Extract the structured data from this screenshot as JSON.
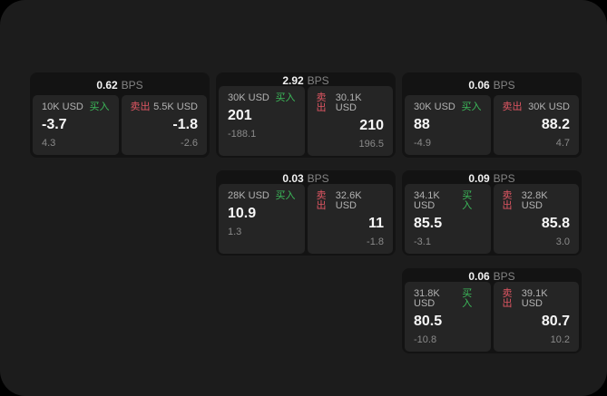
{
  "labels": {
    "bps_unit": "BPS",
    "buy": "买入",
    "sell": "卖出"
  },
  "colors": {
    "page_bg": "#1c1c1c",
    "card_bg": "#131313",
    "panel_bg": "#252525",
    "buy_green": "#3cba5a",
    "sell_red": "#e05663"
  },
  "cards": [
    {
      "bps": "0.62",
      "buy": {
        "amount": "10K USD",
        "price": "-3.7",
        "delta": "4.3"
      },
      "sell": {
        "amount": "5.5K USD",
        "price": "-1.8",
        "delta": "-2.6"
      }
    },
    {
      "bps": "2.92",
      "buy": {
        "amount": "30K USD",
        "price": "201",
        "delta": "-188.1"
      },
      "sell": {
        "amount": "30.1K USD",
        "price": "210",
        "delta": "196.5"
      }
    },
    {
      "bps": "0.06",
      "buy": {
        "amount": "30K USD",
        "price": "88",
        "delta": "-4.9"
      },
      "sell": {
        "amount": "30K USD",
        "price": "88.2",
        "delta": "4.7"
      }
    },
    {
      "bps": "0.03",
      "buy": {
        "amount": "28K USD",
        "price": "10.9",
        "delta": "1.3"
      },
      "sell": {
        "amount": "32.6K USD",
        "price": "11",
        "delta": "-1.8"
      }
    },
    {
      "bps": "0.09",
      "buy": {
        "amount": "34.1K USD",
        "price": "85.5",
        "delta": "-3.1"
      },
      "sell": {
        "amount": "32.8K USD",
        "price": "85.8",
        "delta": "3.0"
      }
    },
    {
      "bps": "0.06",
      "buy": {
        "amount": "31.8K USD",
        "price": "80.5",
        "delta": "-10.8"
      },
      "sell": {
        "amount": "39.1K USD",
        "price": "80.7",
        "delta": "10.2"
      }
    }
  ]
}
